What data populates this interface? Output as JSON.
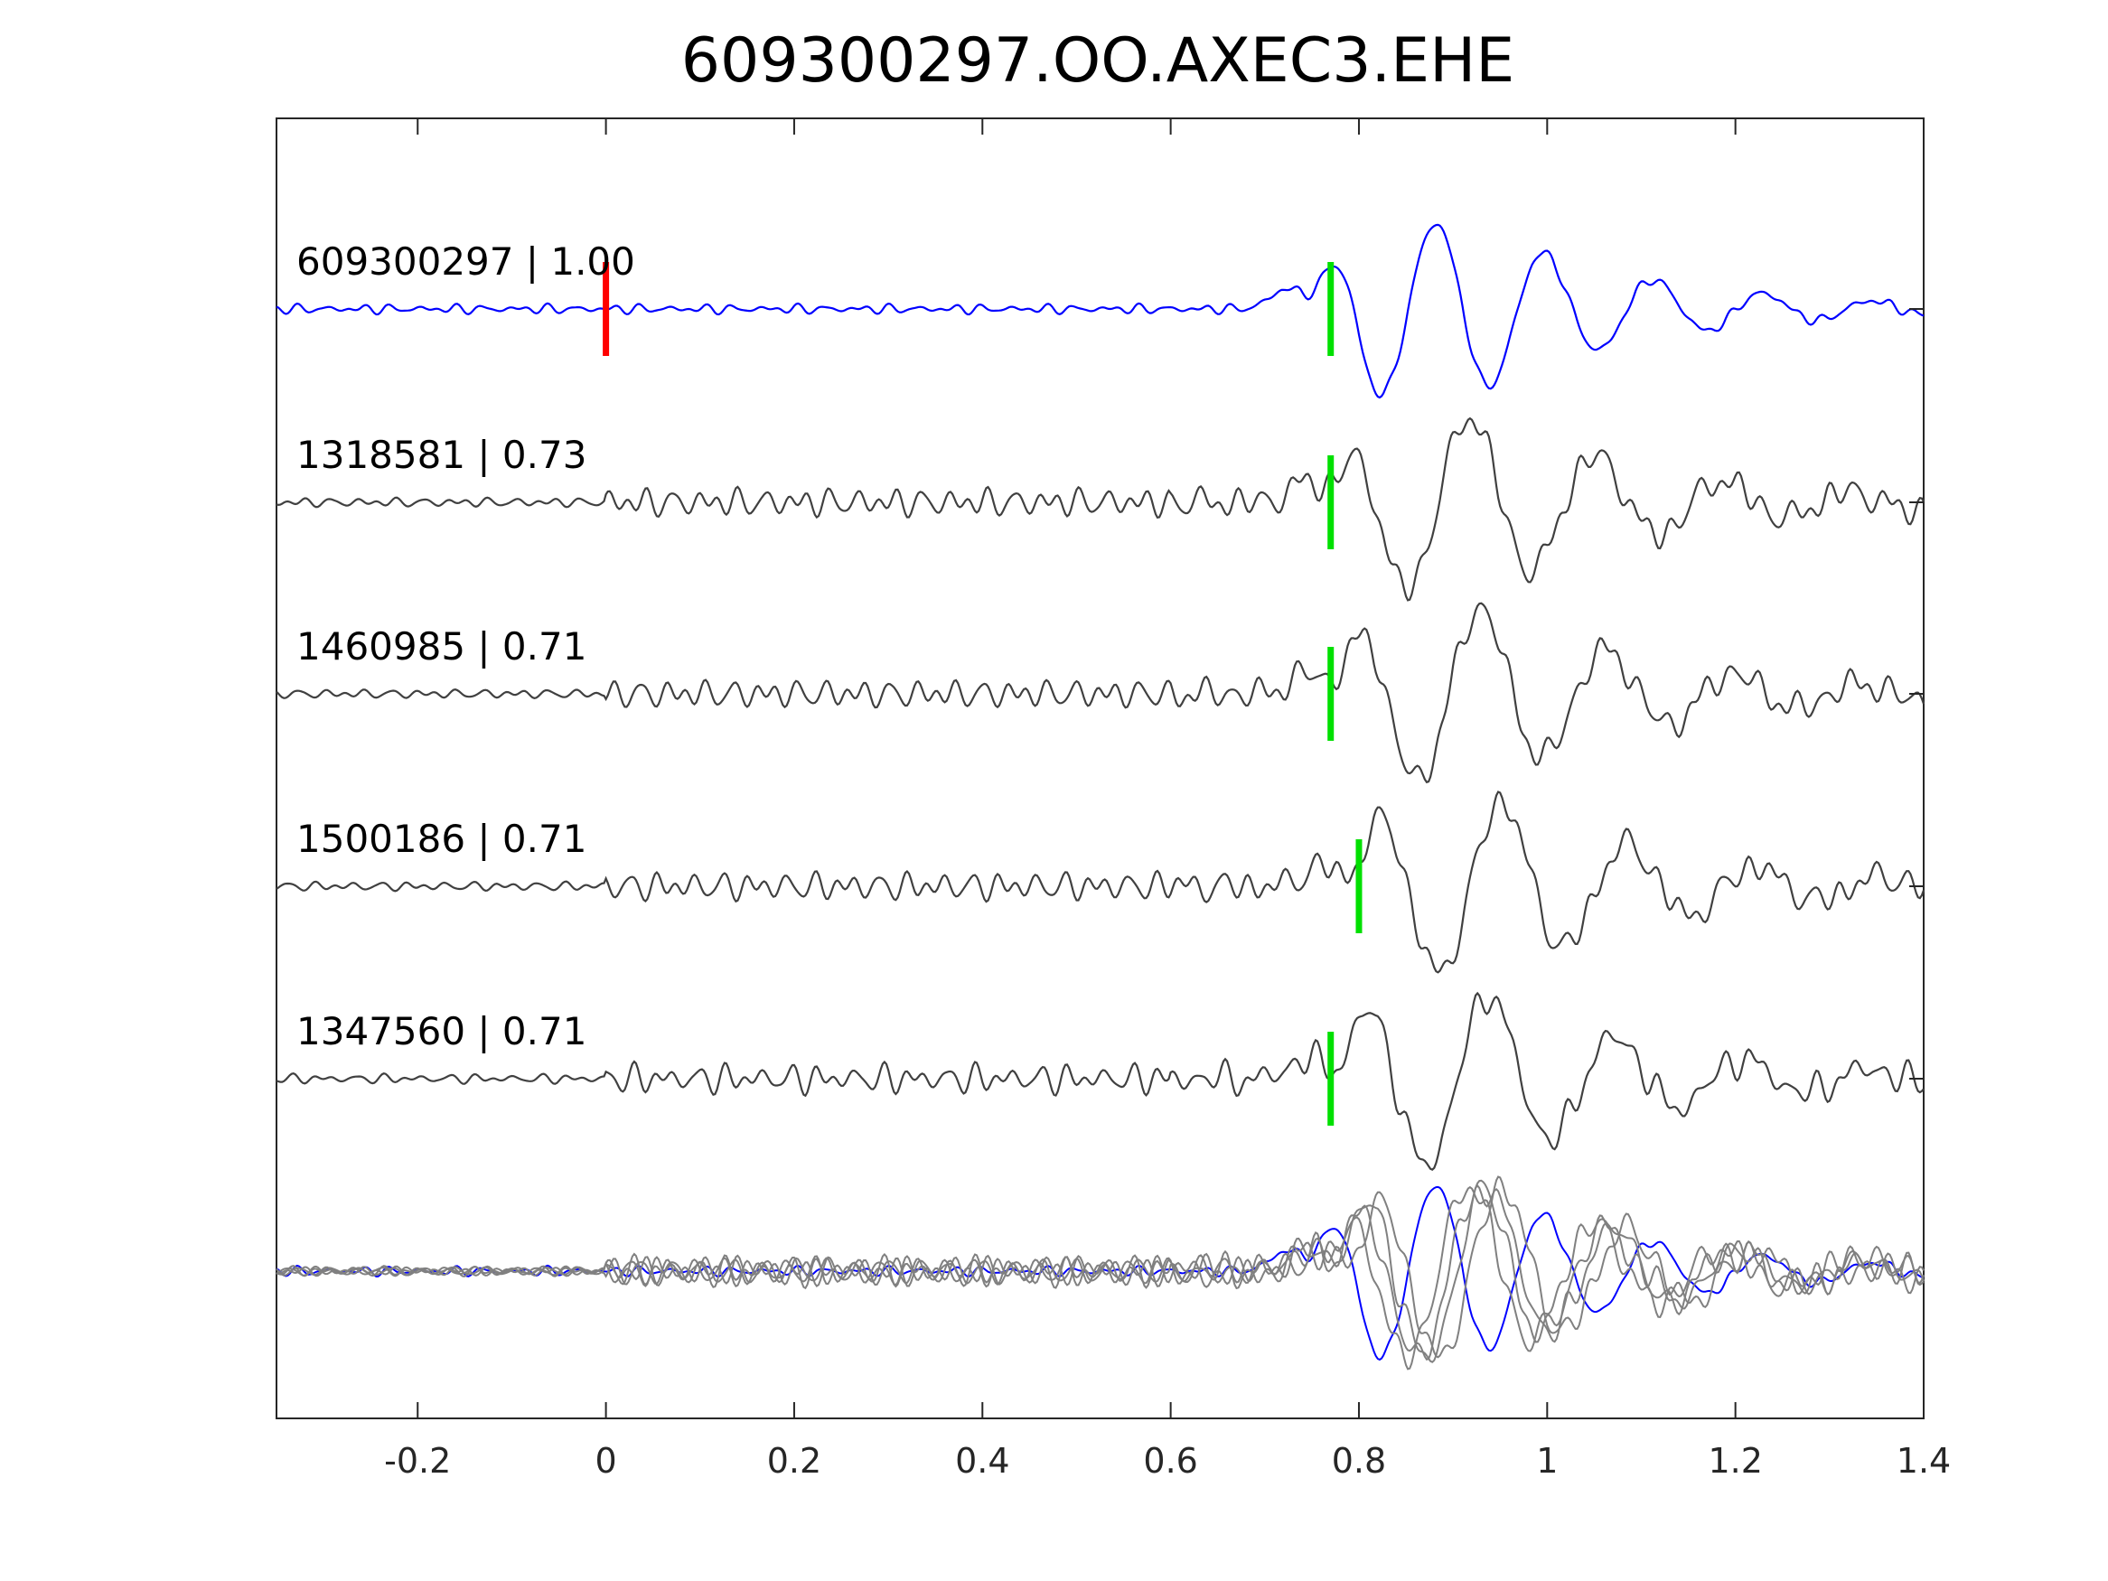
{
  "chart_data": {
    "type": "line",
    "title": "609300297.OO.AXEC3.EHE",
    "xlabel": "",
    "ylabel": "",
    "xlim": [
      -0.35,
      1.4
    ],
    "x_ticks": [
      -0.2,
      0,
      0.2,
      0.4,
      0.6,
      0.8,
      1,
      1.2,
      1.4
    ],
    "x_tick_labels": [
      "-0.2",
      "0",
      "0.2",
      "0.4",
      "0.6",
      "0.8",
      "1",
      "1.2",
      "1.4"
    ],
    "grid": false,
    "legend": "none",
    "traces": [
      {
        "label": "609300297 | 1.00",
        "event_id": "609300297",
        "correlation": 1.0,
        "color": "#0000ff",
        "pick_red": 0.0,
        "pick_green": 0.77
      },
      {
        "label": "1318581 | 0.73",
        "event_id": "1318581",
        "correlation": 0.73,
        "color": "#404040",
        "pick_green": 0.77
      },
      {
        "label": "1460985 | 0.71",
        "event_id": "1460985",
        "correlation": 0.71,
        "color": "#404040",
        "pick_green": 0.77
      },
      {
        "label": "1500186 | 0.71",
        "event_id": "1500186",
        "correlation": 0.71,
        "color": "#404040",
        "pick_green": 0.8
      },
      {
        "label": "1347560 | 0.71",
        "event_id": "1347560",
        "correlation": 0.71,
        "color": "#404040",
        "pick_green": 0.77
      }
    ],
    "stack_panel": {
      "colors": [
        "#0000ff",
        "#808080"
      ]
    },
    "colors": {
      "reference": "#0000ff",
      "trace": "#404040",
      "overlay": "#808080",
      "pick_red": "#ff0000",
      "pick_green": "#00e000",
      "axes": "#262626"
    }
  }
}
